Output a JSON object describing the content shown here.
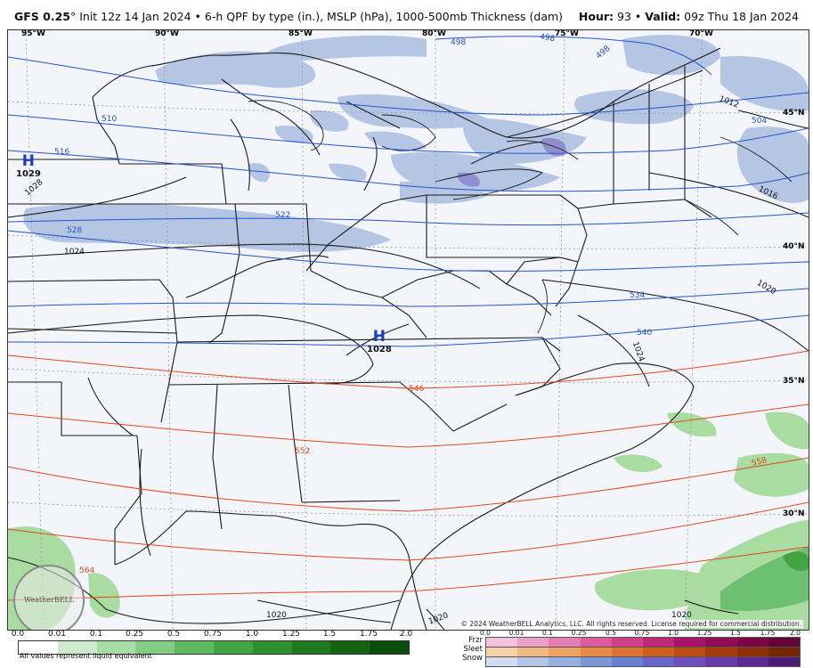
{
  "header": {
    "model": "GFS 0.25",
    "degree": "°",
    "init": " Init 12z 14 Jan 2024",
    "bullet": " • ",
    "product": "6-h QPF by type (in.), MSLP (hPa), 1000-500mb Thickness (dam)",
    "hour_label": "Hour:",
    "hour_value": "93",
    "valid_label": "Valid:",
    "valid_value": "09z Thu 18 Jan 2024"
  },
  "longitude_labels": [
    "95°W",
    "90°W",
    "85°W",
    "80°W",
    "75°W",
    "70°W"
  ],
  "latitude_labels": [
    "45°N",
    "40°N",
    "35°N",
    "30°N"
  ],
  "pressure_centers": [
    {
      "letter": "H",
      "value": "1029"
    },
    {
      "letter": "H",
      "value": "1028"
    }
  ],
  "isobar_labels": [
    "1028",
    "1024",
    "1020",
    "1016",
    "1012",
    "1024",
    "1020",
    "1020",
    "1020"
  ],
  "thickness_labels_blue": [
    "498",
    "498",
    "498",
    "504",
    "510",
    "516",
    "522",
    "528",
    "534",
    "540"
  ],
  "thickness_labels_red": [
    "546",
    "552",
    "558",
    "564"
  ],
  "colors": {
    "snow_light": "#b4c6e4",
    "snow_mid": "#8fa8d8",
    "rain_light": "#a8dca0",
    "rain_mid": "#6cc070",
    "isobar": "#111111",
    "thickness_cold": "#2255cc",
    "thickness_warm": "#e04a1a",
    "state_lines": "#1a1a1a"
  },
  "copyright": "© 2024 WeatherBELL Analytics, LLC. All rights reserved. License required for commercial distribution.",
  "logo_text": "WeatherBELL",
  "legend": {
    "qpf_ticks": [
      "0.0",
      "0.01",
      "0.1",
      "0.25",
      "0.5",
      "0.75",
      "1.0",
      "1.25",
      "1.5",
      "1.75",
      "2.0"
    ],
    "qpf_colors": [
      "#ffffff",
      "#cdeccd",
      "#a6dca6",
      "#83cc83",
      "#60b860",
      "#43a443",
      "#2e902e",
      "#1f7a1f",
      "#146414",
      "#0b4e0b"
    ],
    "liquid_note": "All values represent liquid equivalent",
    "type_ticks": [
      "0.0",
      "0.01",
      "0.1",
      "0.25",
      "0.5",
      "0.75",
      "1.0",
      "1.25",
      "1.5",
      "1.75",
      "2.0"
    ],
    "types": [
      {
        "name": "Frzr",
        "colors": [
          "#f2c4dc",
          "#eaa2c8",
          "#e37fb4",
          "#dc5ca0",
          "#cf3f8a",
          "#bd2877",
          "#a81566",
          "#900b55",
          "#790545",
          "#620236"
        ]
      },
      {
        "name": "Sleet",
        "colors": [
          "#f6d0a8",
          "#f2b985",
          "#eea162",
          "#e88a44",
          "#de732e",
          "#d05f1e",
          "#bd4c12",
          "#a63c0a",
          "#8f2f05",
          "#772403"
        ]
      },
      {
        "name": "Snow",
        "colors": [
          "#d2dcf0",
          "#b4c6e8",
          "#97afe0",
          "#7b97d6",
          "#6a7fd0",
          "#6a66c8",
          "#6e4fbc",
          "#6a3aa8",
          "#5c2a90",
          "#4b1f78"
        ]
      }
    ]
  }
}
